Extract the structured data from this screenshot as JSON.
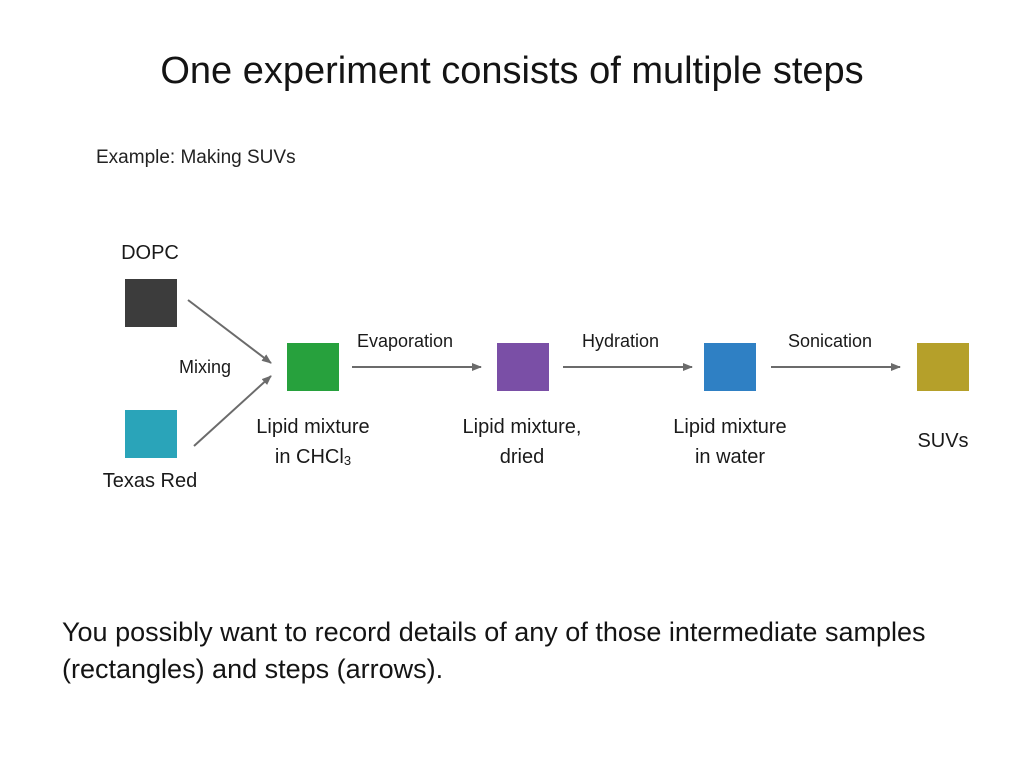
{
  "slide": {
    "title": "One experiment consists of multiple steps",
    "subtitle": "Example: Making SUVs",
    "footnote": "You possibly want to record details of any of those intermediate samples (rectangles) and steps (arrows)."
  },
  "inputs": {
    "dopc": {
      "label": "DOPC",
      "color": "#3c3c3c"
    },
    "texas_red": {
      "label": "Texas Red",
      "color": "#2aa4b9"
    }
  },
  "samples": {
    "chcl3": {
      "line1": "Lipid mixture",
      "line2_prefix": "in CHCl",
      "line2_sub": "3",
      "color": "#27a13d"
    },
    "dried": {
      "line1": "Lipid mixture,",
      "line2": "dried",
      "color": "#7a4fa6"
    },
    "water": {
      "line1": "Lipid mixture",
      "line2": "in water",
      "color": "#2f80c4"
    },
    "suvs": {
      "label": "SUVs",
      "color": "#b5a02a"
    }
  },
  "steps": {
    "mixing": "Mixing",
    "evaporation": "Evaporation",
    "hydration": "Hydration",
    "sonication": "Sonication"
  },
  "colors": {
    "arrow": "#6b6b6b"
  }
}
